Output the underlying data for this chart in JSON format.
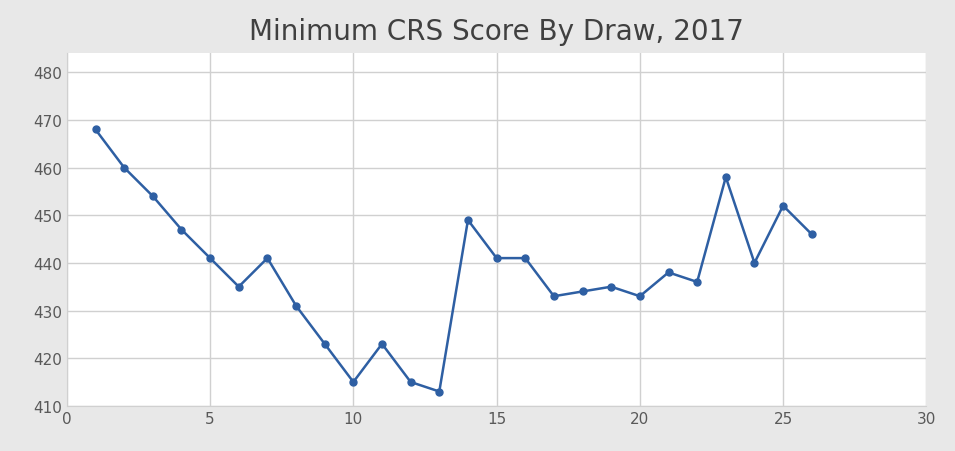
{
  "title": "Minimum CRS Score By Draw, 2017",
  "scores": [
    468,
    460,
    454,
    447,
    441,
    435,
    441,
    431,
    423,
    415,
    423,
    415,
    413,
    449,
    441,
    441,
    433,
    434,
    435,
    433,
    438,
    436,
    458,
    440,
    452,
    446
  ],
  "draws": [
    1,
    2,
    3,
    4,
    5,
    6,
    7,
    8,
    9,
    10,
    11,
    12,
    13,
    14,
    15,
    16,
    17,
    18,
    19,
    20,
    21,
    22,
    23,
    24,
    25,
    26
  ],
  "line_color": "#2E5FA3",
  "marker": "o",
  "markersize": 5,
  "linewidth": 1.8,
  "xlim": [
    0,
    30
  ],
  "ylim": [
    410,
    484
  ],
  "yticks": [
    410,
    420,
    430,
    440,
    450,
    460,
    470,
    480
  ],
  "xticks": [
    0,
    5,
    10,
    15,
    20,
    25,
    30
  ],
  "title_fontsize": 20,
  "figure_bg_color": "#E8E8E8",
  "plot_bg_color": "#FFFFFF",
  "grid_color": "#D0D0D0",
  "tick_label_color": "#595959",
  "title_color": "#404040"
}
